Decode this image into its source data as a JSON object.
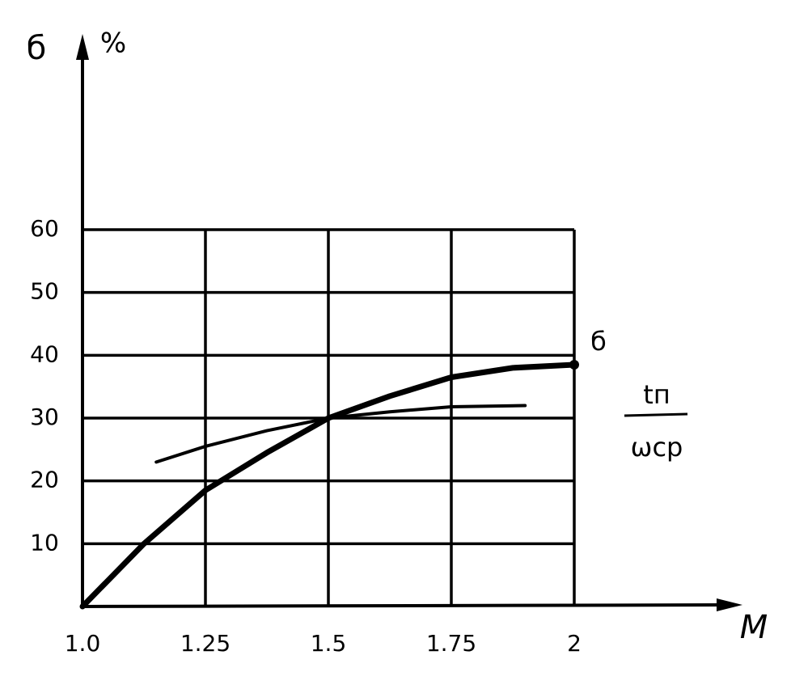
{
  "chart_data": {
    "type": "line",
    "y_label": "б",
    "y_unit": "%",
    "x_label": "M",
    "xlim": [
      1,
      2
    ],
    "xticks": [
      {
        "value": 1,
        "label": "1.0"
      },
      1.25,
      1.5,
      1.75,
      2
    ],
    "ylim": [
      0,
      60
    ],
    "yticks": [
      10,
      20,
      30,
      40,
      50,
      60
    ],
    "grid": true,
    "series": [
      {
        "name": "б",
        "color": "#000000",
        "x": [
          1,
          1.125,
          1.25,
          1.375,
          1.5,
          1.625,
          1.75,
          1.875,
          2
        ],
        "values": [
          0,
          10,
          18.5,
          24.5,
          30,
          33.5,
          36.5,
          38,
          38.5
        ]
      },
      {
        "name": {
          "numerator": "tп",
          "denominator": "ωср"
        },
        "color": "#000000",
        "x": [
          1.15,
          1.25,
          1.375,
          1.5,
          1.625,
          1.75,
          1.9
        ],
        "values": [
          23,
          25.5,
          28,
          30,
          31,
          31.8,
          32
        ]
      }
    ]
  }
}
